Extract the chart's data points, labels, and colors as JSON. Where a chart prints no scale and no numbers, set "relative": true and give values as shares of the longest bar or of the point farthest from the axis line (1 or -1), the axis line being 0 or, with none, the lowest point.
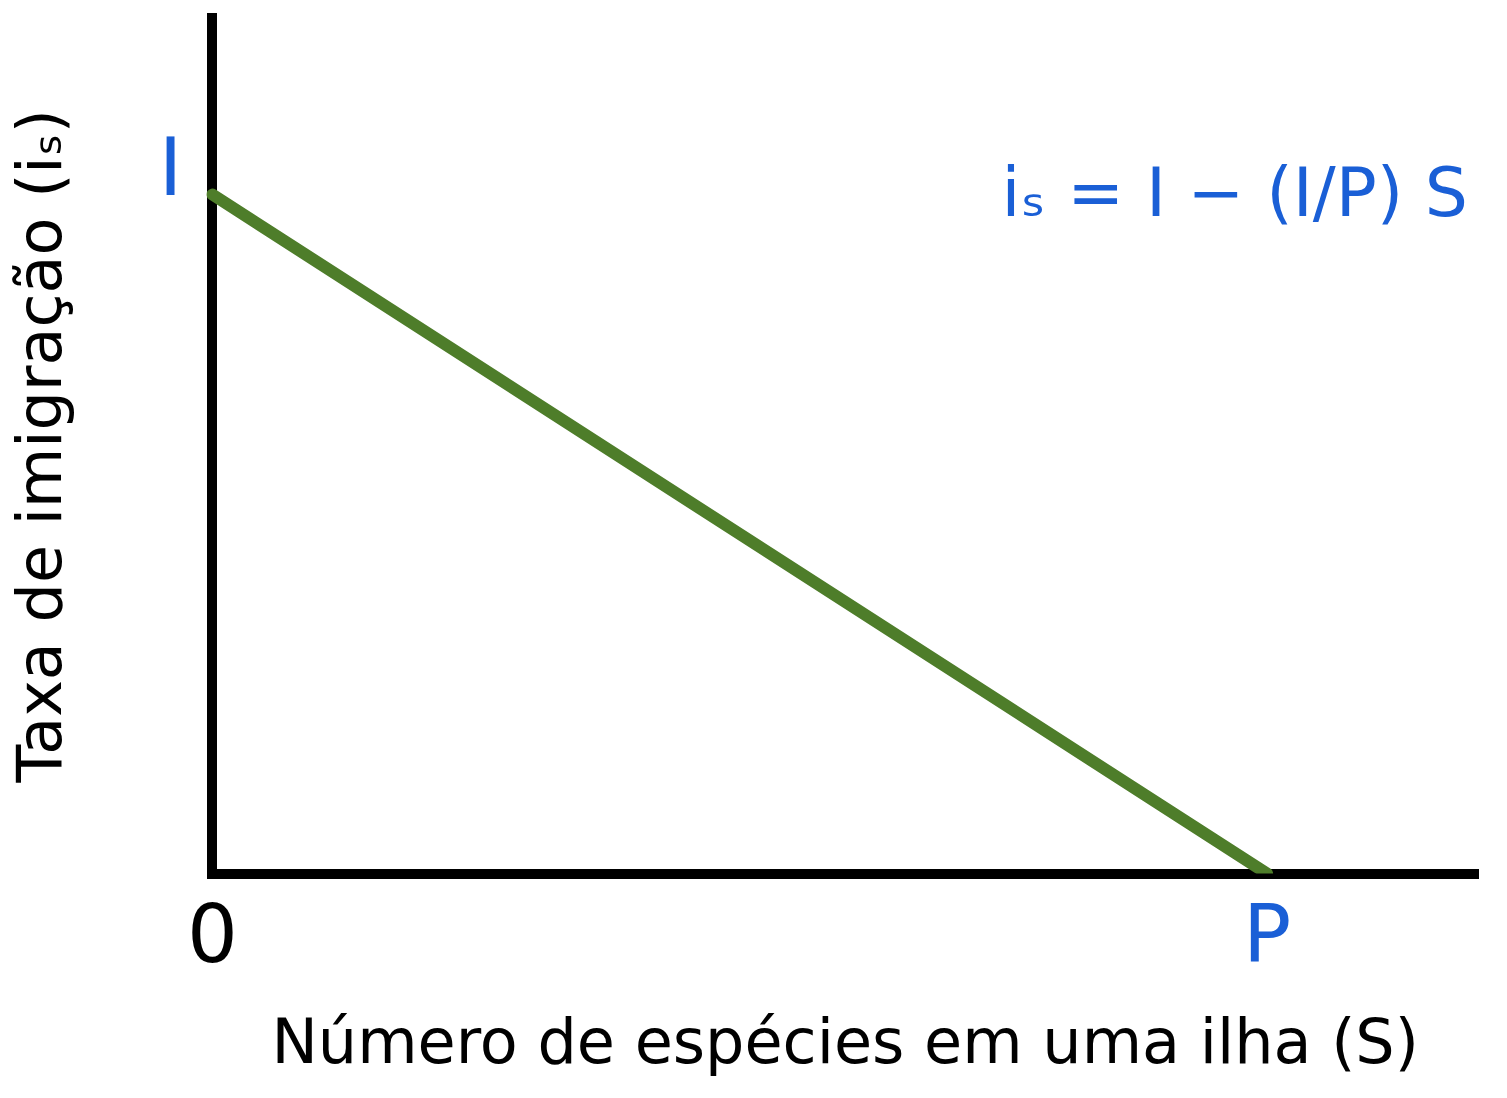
{
  "chart_data": {
    "type": "line",
    "xlabel": "Número de espécies em uma ilha (S)",
    "ylabel": "Taxa de imigração (iₛ)",
    "categories": [
      "0",
      null,
      null,
      null,
      null,
      "P",
      null
    ],
    "series": [
      {
        "color": "#4e7d2a",
        "values": [
          1,
          null,
          null,
          null,
          null,
          0,
          null
        ]
      }
    ],
    "relative": true,
    "annotations": [
      {
        "text": "I",
        "x": "0",
        "y": 1
      },
      "iₛ = I − (I/P) S"
    ],
    "legend": false,
    "marker": "none",
    "line_style": "solid"
  }
}
